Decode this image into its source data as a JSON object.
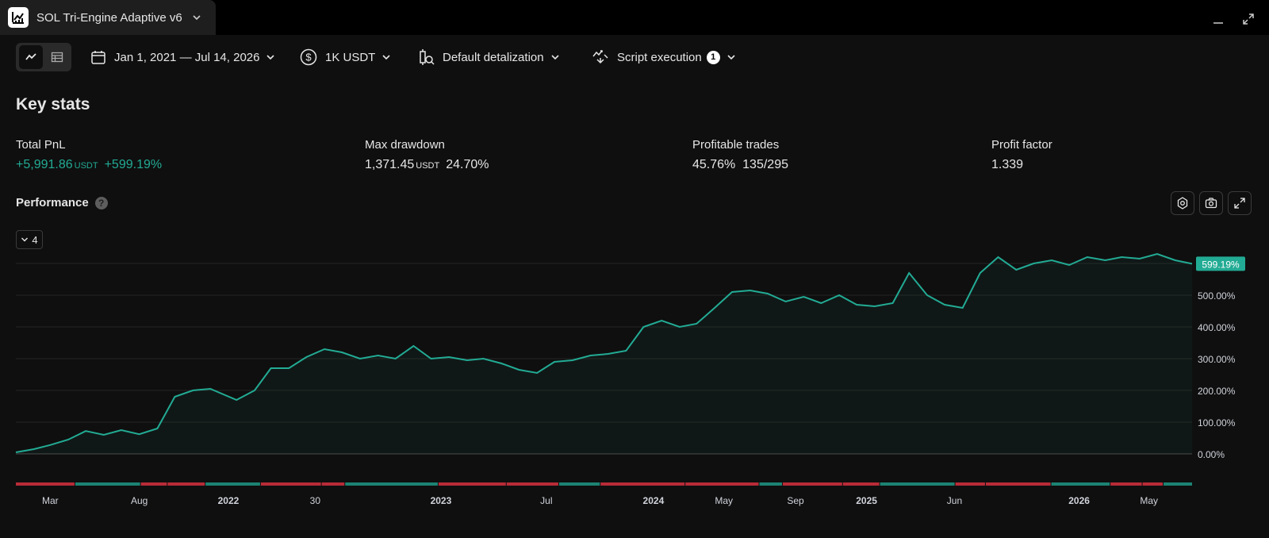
{
  "tab": {
    "title": "SOL Tri-Engine Adaptive v6"
  },
  "toolbar": {
    "date_range": "Jan 1, 2021 — Jul 14, 2026",
    "capital": "1K USDT",
    "detalization": "Default detalization",
    "script_execution": "Script execution",
    "script_execution_count": "1"
  },
  "key_stats": {
    "title": "Key stats",
    "total_pnl": {
      "label": "Total PnL",
      "value": "+5,991.86",
      "unit": "USDT",
      "percent": "+599.19%"
    },
    "max_drawdown": {
      "label": "Max drawdown",
      "value": "1,371.45",
      "unit": "USDT",
      "percent": "24.70%"
    },
    "profitable_trades": {
      "label": "Profitable trades",
      "percent": "45.76%",
      "ratio": "135/295"
    },
    "profit_factor": {
      "label": "Profit factor",
      "value": "1.339"
    }
  },
  "performance": {
    "title": "Performance",
    "help_glyph": "?",
    "collapse_label": "4"
  },
  "colors": {
    "accent_green": "#22ab94",
    "loss_red": "#f23645",
    "background": "#0f0f0f"
  },
  "chart_data": {
    "type": "line",
    "ylim": [
      -10,
      620
    ],
    "y_ticks": [
      "0.00%",
      "100.00%",
      "200.00%",
      "300.00%",
      "400.00%",
      "500.00%"
    ],
    "y_tick_values": [
      0,
      100,
      200,
      300,
      400,
      500
    ],
    "x_range": [
      "2021-01-01",
      "2026-07-14"
    ],
    "x_ticks": [
      {
        "date": "2021-03-01",
        "label": "Mar",
        "bold": false
      },
      {
        "date": "2021-08-01",
        "label": "Aug",
        "bold": false
      },
      {
        "date": "2022-01-01",
        "label": "2022",
        "bold": true
      },
      {
        "date": "2022-05-30",
        "label": "30",
        "bold": false
      },
      {
        "date": "2023-01-01",
        "label": "2023",
        "bold": true
      },
      {
        "date": "2023-07-01",
        "label": "Jul",
        "bold": false
      },
      {
        "date": "2024-01-01",
        "label": "2024",
        "bold": true
      },
      {
        "date": "2024-05-01",
        "label": "May",
        "bold": false
      },
      {
        "date": "2024-09-01",
        "label": "Sep",
        "bold": false
      },
      {
        "date": "2025-01-01",
        "label": "2025",
        "bold": true
      },
      {
        "date": "2025-06-01",
        "label": "Jun",
        "bold": false
      },
      {
        "date": "2026-01-01",
        "label": "2026",
        "bold": true
      },
      {
        "date": "2026-05-01",
        "label": "May",
        "bold": false
      }
    ],
    "last_value_label": "599.19%",
    "series": [
      {
        "values": [
          [
            "2021-01-01",
            5
          ],
          [
            "2021-02-01",
            15
          ],
          [
            "2021-03-01",
            28
          ],
          [
            "2021-04-01",
            45
          ],
          [
            "2021-05-01",
            72
          ],
          [
            "2021-06-01",
            60
          ],
          [
            "2021-07-01",
            75
          ],
          [
            "2021-08-01",
            62
          ],
          [
            "2021-09-01",
            80
          ],
          [
            "2021-10-01",
            180
          ],
          [
            "2021-11-01",
            200
          ],
          [
            "2021-12-01",
            205
          ],
          [
            "2022-01-15",
            170
          ],
          [
            "2022-02-15",
            200
          ],
          [
            "2022-03-15",
            270
          ],
          [
            "2022-04-15",
            270
          ],
          [
            "2022-05-15",
            305
          ],
          [
            "2022-06-15",
            330
          ],
          [
            "2022-07-15",
            320
          ],
          [
            "2022-08-15",
            300
          ],
          [
            "2022-09-15",
            310
          ],
          [
            "2022-10-15",
            300
          ],
          [
            "2022-11-15",
            340
          ],
          [
            "2022-12-15",
            300
          ],
          [
            "2023-01-15",
            305
          ],
          [
            "2023-02-15",
            295
          ],
          [
            "2023-03-15",
            300
          ],
          [
            "2023-04-15",
            285
          ],
          [
            "2023-05-15",
            265
          ],
          [
            "2023-06-15",
            255
          ],
          [
            "2023-07-15",
            290
          ],
          [
            "2023-08-15",
            295
          ],
          [
            "2023-09-15",
            310
          ],
          [
            "2023-10-15",
            315
          ],
          [
            "2023-11-15",
            325
          ],
          [
            "2023-12-15",
            400
          ],
          [
            "2024-01-15",
            420
          ],
          [
            "2024-02-15",
            400
          ],
          [
            "2024-03-15",
            410
          ],
          [
            "2024-04-15",
            460
          ],
          [
            "2024-05-15",
            510
          ],
          [
            "2024-06-15",
            515
          ],
          [
            "2024-07-15",
            505
          ],
          [
            "2024-08-15",
            480
          ],
          [
            "2024-09-15",
            495
          ],
          [
            "2024-10-15",
            475
          ],
          [
            "2024-11-15",
            500
          ],
          [
            "2024-12-15",
            470
          ],
          [
            "2025-01-15",
            465
          ],
          [
            "2025-02-15",
            475
          ],
          [
            "2025-03-15",
            570
          ],
          [
            "2025-04-15",
            500
          ],
          [
            "2025-05-15",
            470
          ],
          [
            "2025-06-15",
            460
          ],
          [
            "2025-07-15",
            570
          ],
          [
            "2025-08-15",
            620
          ],
          [
            "2025-09-15",
            580
          ],
          [
            "2025-10-15",
            600
          ],
          [
            "2025-11-15",
            610
          ],
          [
            "2025-12-15",
            595
          ],
          [
            "2026-01-15",
            620
          ],
          [
            "2026-02-15",
            610
          ],
          [
            "2026-03-15",
            620
          ],
          [
            "2026-04-15",
            615
          ],
          [
            "2026-05-15",
            630
          ],
          [
            "2026-06-15",
            610
          ],
          [
            "2026-07-14",
            599
          ]
        ]
      }
    ]
  }
}
